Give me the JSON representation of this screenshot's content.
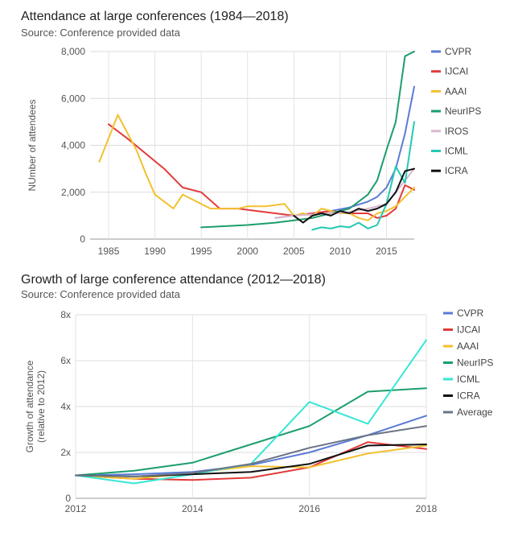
{
  "chart_data": [
    {
      "type": "line",
      "title": "Attendance at large conferences (1984—2018)",
      "subtitle": "Source: Conference provided data",
      "xlabel": "",
      "ylabel": "NUmber of attendees",
      "xlim": [
        1983,
        2018
      ],
      "ylim": [
        0,
        8000
      ],
      "xticks": [
        1985,
        1990,
        1995,
        2000,
        2005,
        2010,
        2015
      ],
      "yticks": [
        0,
        2000,
        4000,
        6000,
        8000
      ],
      "ytick_labels": [
        "0",
        "2,000",
        "4,000",
        "6,000",
        "8,000"
      ],
      "grid": true,
      "legend_position": "right",
      "series": [
        {
          "name": "CVPR",
          "color": "#5b7bd5",
          "x": [
            2003,
            2005,
            2007,
            2009,
            2011,
            2013,
            2014,
            2015,
            2016,
            2017,
            2018
          ],
          "y": [
            900,
            1000,
            1100,
            1200,
            1350,
            1600,
            1800,
            2200,
            3000,
            4500,
            6500
          ]
        },
        {
          "name": "IJCAI",
          "color": "#e23b3b",
          "x": [
            1985,
            1987,
            1991,
            1993,
            1995,
            1997,
            1999,
            2001,
            2003,
            2005,
            2007,
            2009,
            2011,
            2013,
            2014,
            2015,
            2016,
            2017,
            2018
          ],
          "y": [
            4900,
            4300,
            3000,
            2200,
            2000,
            1300,
            1300,
            1200,
            1100,
            1000,
            1100,
            1200,
            1100,
            1100,
            900,
            1000,
            1300,
            2300,
            2100
          ]
        },
        {
          "name": "AAAI",
          "color": "#f2c12e",
          "x": [
            1984,
            1986,
            1988,
            1989,
            1990,
            1992,
            1993,
            1994,
            1996,
            1998,
            1999,
            2000,
            2002,
            2004,
            2005,
            2006,
            2007,
            2008,
            2010,
            2011,
            2012,
            2013,
            2014,
            2015,
            2016,
            2017,
            2018
          ],
          "y": [
            3300,
            5300,
            3800,
            2800,
            1900,
            1300,
            1900,
            1700,
            1300,
            1300,
            1300,
            1400,
            1400,
            1500,
            1000,
            1100,
            1000,
            1300,
            1100,
            1100,
            900,
            800,
            1100,
            1200,
            1400,
            1800,
            2200
          ]
        },
        {
          "name": "NeurIPS",
          "color": "#1c9e6c",
          "x": [
            1995,
            2000,
            2003,
            2005,
            2007,
            2009,
            2011,
            2012,
            2013,
            2014,
            2015,
            2016,
            2017,
            2018
          ],
          "y": [
            500,
            600,
            700,
            800,
            900,
            1100,
            1300,
            1600,
            1900,
            2500,
            3800,
            5000,
            7800,
            8000
          ]
        },
        {
          "name": "IROS",
          "color": "#d9b8d0",
          "x": [
            2003,
            2005,
            2007,
            2009,
            2011,
            2013,
            2015,
            2016,
            2017,
            2018
          ],
          "y": [
            900,
            1000,
            1050,
            1100,
            1150,
            1300,
            1500,
            2000,
            2500,
            3000
          ]
        },
        {
          "name": "ICML",
          "color": "#26c8b4",
          "x": [
            2007,
            2008,
            2009,
            2010,
            2011,
            2012,
            2013,
            2014,
            2015,
            2016,
            2017,
            2018
          ],
          "y": [
            400,
            500,
            450,
            550,
            500,
            700,
            450,
            600,
            1500,
            3100,
            2400,
            5000
          ]
        },
        {
          "name": "ICRA",
          "color": "#111111",
          "x": [
            2005,
            2006,
            2007,
            2008,
            2009,
            2010,
            2011,
            2012,
            2013,
            2014,
            2015,
            2016,
            2017,
            2018
          ],
          "y": [
            1000,
            700,
            1000,
            1100,
            1000,
            1200,
            1100,
            1300,
            1200,
            1300,
            1500,
            2000,
            2900,
            3000
          ]
        }
      ]
    },
    {
      "type": "line",
      "title": "Growth of large conference attendance (2012—2018)",
      "subtitle": "Source: Conference provided data",
      "xlabel": "",
      "ylabel": "Growth of attendance\n(relative to 2012)",
      "xlim": [
        2012,
        2018
      ],
      "ylim": [
        0,
        8
      ],
      "xticks": [
        2012,
        2014,
        2016,
        2018
      ],
      "yticks": [
        0,
        2,
        4,
        6,
        8
      ],
      "ytick_labels": [
        "0",
        "2x",
        "4x",
        "6x",
        "8x"
      ],
      "grid": true,
      "legend_position": "right",
      "series": [
        {
          "name": "CVPR",
          "color": "#5b7bd5",
          "x": [
            2012,
            2013,
            2014,
            2015,
            2016,
            2017,
            2018
          ],
          "y": [
            1,
            1.05,
            1.15,
            1.45,
            2.0,
            2.75,
            3.6
          ]
        },
        {
          "name": "IJCAI",
          "color": "#e23b3b",
          "x": [
            2012,
            2013,
            2014,
            2015,
            2016,
            2017,
            2018
          ],
          "y": [
            1,
            0.85,
            0.8,
            0.9,
            1.35,
            2.45,
            2.15
          ]
        },
        {
          "name": "AAAI",
          "color": "#f2c12e",
          "x": [
            2012,
            2013,
            2014,
            2015,
            2016,
            2017,
            2018
          ],
          "y": [
            1,
            0.85,
            1.1,
            1.4,
            1.35,
            1.95,
            2.3
          ]
        },
        {
          "name": "NeurIPS",
          "color": "#1c9e6c",
          "x": [
            2012,
            2013,
            2014,
            2015,
            2016,
            2017,
            2018
          ],
          "y": [
            1,
            1.2,
            1.55,
            2.35,
            3.15,
            4.65,
            4.8
          ]
        },
        {
          "name": "ICML",
          "color": "#37e6d6",
          "x": [
            2012,
            2013,
            2014,
            2015,
            2016,
            2017,
            2018
          ],
          "y": [
            1,
            0.65,
            1.05,
            1.5,
            4.2,
            3.25,
            6.9
          ]
        },
        {
          "name": "ICRA",
          "color": "#111111",
          "x": [
            2012,
            2013,
            2014,
            2015,
            2016,
            2017,
            2018
          ],
          "y": [
            1,
            0.95,
            1.05,
            1.15,
            1.5,
            2.3,
            2.35
          ]
        },
        {
          "name": "Average",
          "color": "#6a7485",
          "x": [
            2012,
            2013,
            2014,
            2015,
            2016,
            2017,
            2018
          ],
          "y": [
            1,
            0.95,
            1.1,
            1.5,
            2.2,
            2.75,
            3.15
          ]
        }
      ]
    }
  ]
}
